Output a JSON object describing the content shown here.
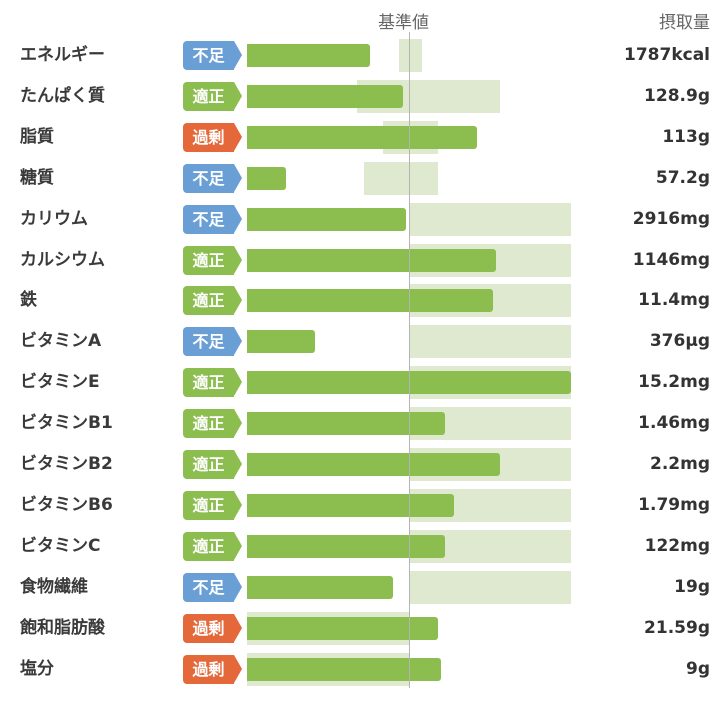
{
  "header": {
    "standard_label": "基準値",
    "intake_label": "摂取量"
  },
  "status_colors": {
    "不足": "#6a9fd6",
    "適正": "#8bbd4f",
    "過剰": "#e4683a"
  },
  "nutrients": [
    {
      "name": "エネルギー",
      "status": "不足",
      "value": "1787kcal",
      "intake_level": 0.38,
      "std_min": 0.47,
      "std_max": 0.54
    },
    {
      "name": "たんぱく質",
      "status": "適正",
      "value": "128.9g",
      "intake_level": 0.48,
      "std_min": 0.34,
      "std_max": 0.78
    },
    {
      "name": "脂質",
      "status": "過剰",
      "value": "113g",
      "intake_level": 0.71,
      "std_min": 0.42,
      "std_max": 0.59
    },
    {
      "name": "糖質",
      "status": "不足",
      "value": "57.2g",
      "intake_level": 0.12,
      "std_min": 0.36,
      "std_max": 0.59
    },
    {
      "name": "カリウム",
      "status": "不足",
      "value": "2916mg",
      "intake_level": 0.49,
      "std_min": 0.5,
      "std_max": 1.0
    },
    {
      "name": "カルシウム",
      "status": "適正",
      "value": "1146mg",
      "intake_level": 0.77,
      "std_min": 0.5,
      "std_max": 1.0
    },
    {
      "name": "鉄",
      "status": "適正",
      "value": "11.4mg",
      "intake_level": 0.76,
      "std_min": 0.5,
      "std_max": 1.0
    },
    {
      "name": "ビタミンA",
      "status": "不足",
      "value": "376µg",
      "intake_level": 0.21,
      "std_min": 0.5,
      "std_max": 1.0
    },
    {
      "name": "ビタミンE",
      "status": "適正",
      "value": "15.2mg",
      "intake_level": 1.0,
      "std_min": 0.5,
      "std_max": 1.0
    },
    {
      "name": "ビタミンB1",
      "status": "適正",
      "value": "1.46mg",
      "intake_level": 0.61,
      "std_min": 0.5,
      "std_max": 1.0
    },
    {
      "name": "ビタミンB2",
      "status": "適正",
      "value": "2.2mg",
      "intake_level": 0.78,
      "std_min": 0.5,
      "std_max": 1.0
    },
    {
      "name": "ビタミンB6",
      "status": "適正",
      "value": "1.79mg",
      "intake_level": 0.64,
      "std_min": 0.5,
      "std_max": 1.0
    },
    {
      "name": "ビタミンC",
      "status": "適正",
      "value": "122mg",
      "intake_level": 0.61,
      "std_min": 0.5,
      "std_max": 1.0
    },
    {
      "name": "食物繊維",
      "status": "不足",
      "value": "19g",
      "intake_level": 0.45,
      "std_min": 0.5,
      "std_max": 1.0
    },
    {
      "name": "飽和脂肪酸",
      "status": "過剰",
      "value": "21.59g",
      "intake_level": 0.59,
      "std_min": 0.0,
      "std_max": 0.5
    },
    {
      "name": "塩分",
      "status": "過剰",
      "value": "9g",
      "intake_level": 0.6,
      "std_min": 0.0,
      "std_max": 0.5
    }
  ]
}
